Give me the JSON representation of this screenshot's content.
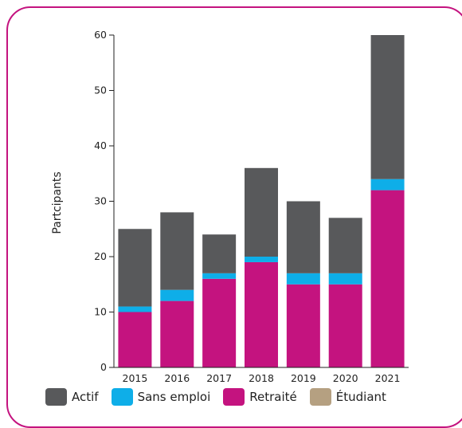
{
  "chart_data": {
    "type": "bar",
    "stacked": true,
    "categories": [
      "2015",
      "2016",
      "2017",
      "2018",
      "2019",
      "2020",
      "2021"
    ],
    "series": [
      {
        "name": "Retraité",
        "color": "#c4137f",
        "values": [
          10,
          12,
          16,
          19,
          15,
          15,
          32
        ]
      },
      {
        "name": "Sans emploi",
        "color": "#0eaee8",
        "values": [
          1,
          2,
          1,
          1,
          2,
          2,
          2
        ]
      },
      {
        "name": "Actif",
        "color": "#58595b",
        "values": [
          14,
          14,
          7,
          16,
          13,
          10,
          26
        ]
      },
      {
        "name": "Étudiant",
        "color": "#b5a081",
        "values": [
          0,
          0,
          0,
          0,
          0,
          0,
          0
        ]
      }
    ],
    "ylabel": "Partcipants",
    "ylim": [
      0,
      60
    ],
    "yticks": [
      0,
      10,
      20,
      30,
      40,
      50,
      60
    ],
    "legend_order": [
      "Actif",
      "Sans emploi",
      "Retraité",
      "Étudiant"
    ],
    "legend_position": "bottom",
    "grid": false
  }
}
